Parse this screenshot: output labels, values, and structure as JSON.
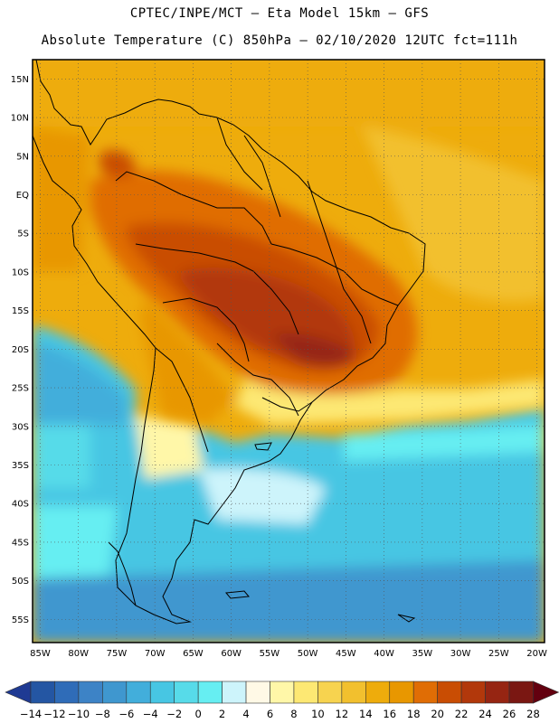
{
  "header": {
    "line1": "CPTEC/INPE/MCT –  Eta Model 15km – GFS",
    "line2": "Absolute Temperature (C) 850hPa – 02/10/2020 12UTC fct=111h"
  },
  "map": {
    "x_axis_labels": [
      "85W",
      "80W",
      "75W",
      "70W",
      "65W",
      "60W",
      "55W",
      "50W",
      "45W",
      "40W",
      "35W",
      "30W",
      "25W",
      "20W"
    ],
    "y_axis_labels": [
      "15N",
      "10N",
      "5N",
      "EQ",
      "5S",
      "10S",
      "15S",
      "20S",
      "25S",
      "30S",
      "35S",
      "40S",
      "45S",
      "50S",
      "55S"
    ],
    "lon_range": [
      -86,
      -19
    ],
    "lat_range": [
      17.5,
      -58
    ],
    "grid": "dotted"
  },
  "colorbar": {
    "labels": [
      "-14",
      "-12",
      "-10",
      "-8",
      "-6",
      "-4",
      "-2",
      "0",
      "2",
      "4",
      "6",
      "8",
      "10",
      "12",
      "14",
      "16",
      "18",
      "20",
      "22",
      "24",
      "26",
      "28"
    ],
    "colors": [
      "#1f3a93",
      "#2456a3",
      "#2f6cb8",
      "#3d83c6",
      "#3f97cf",
      "#42aedb",
      "#47c6e3",
      "#57dbe9",
      "#66eef2",
      "#cdf4fb",
      "#fff9e6",
      "#fff7a8",
      "#fde873",
      "#f7d34f",
      "#f2c02e",
      "#eeac0c",
      "#e89700",
      "#e06d05",
      "#c94d03",
      "#b2380b",
      "#962512",
      "#7a1712",
      "#63000f"
    ]
  }
}
